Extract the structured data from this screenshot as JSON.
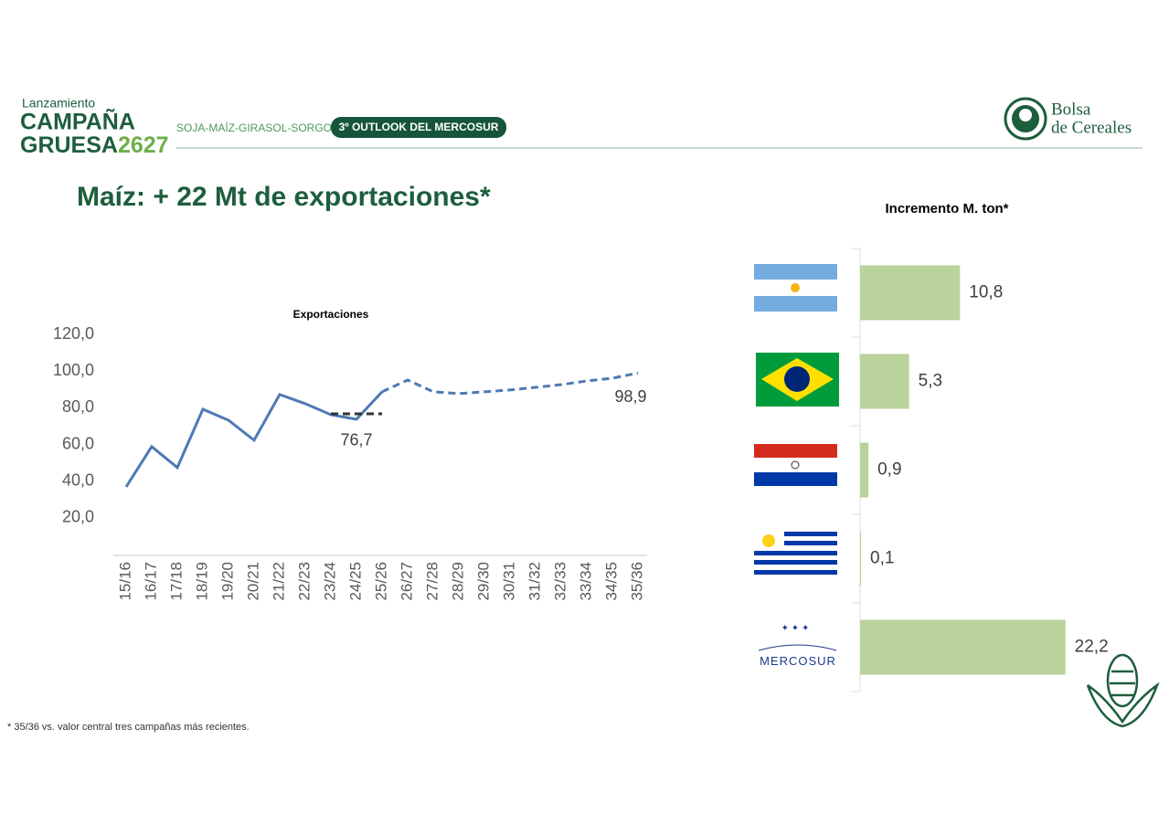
{
  "header": {
    "kicker": "Lanzamiento",
    "brand_line1": "CAMPAÑA",
    "brand_line2": "GRUESA",
    "brand_year": "2627",
    "crops": "SOJA-MAÍZ-GIRASOL-SORGO",
    "badge": "3º OUTLOOK DEL MERCOSUR",
    "org_line1": "Bolsa",
    "org_line2": "de Cereales"
  },
  "title": "Maíz: + 22 Mt de exportaciones*",
  "footnote": "* 35/36 vs. valor central tres campañas más recientes.",
  "chart_data": [
    {
      "type": "line",
      "title": "Exportaciones",
      "categories": [
        "15/16",
        "16/17",
        "17/18",
        "18/19",
        "19/20",
        "20/21",
        "21/22",
        "22/23",
        "23/24",
        "24/25",
        "25/26",
        "26/27",
        "27/28",
        "28/29",
        "29/30",
        "30/31",
        "31/32",
        "32/33",
        "33/34",
        "34/35",
        "35/36"
      ],
      "series": [
        {
          "color": "#4e79b5",
          "style": "solid",
          "values": [
            36.9,
            58.8,
            47.4,
            79.2,
            73.2,
            62.3,
            87.2,
            82.2,
            76.2,
            73.7,
            88.7,
            null,
            null,
            null,
            null,
            null,
            null,
            null,
            null,
            null,
            null
          ]
        },
        {
          "color": "#4e79b5",
          "style": "dashed",
          "values": [
            null,
            null,
            null,
            null,
            null,
            null,
            null,
            null,
            null,
            null,
            88.7,
            95.1,
            88.7,
            87.7,
            88.7,
            89.7,
            91.1,
            92.6,
            94.6,
            96.1,
            98.9
          ],
          "value_labels": [
            null,
            null,
            null,
            null,
            null,
            null,
            null,
            null,
            null,
            null,
            null,
            null,
            null,
            null,
            null,
            null,
            null,
            null,
            null,
            null,
            "98,9"
          ]
        },
        {
          "color": "#333333",
          "style": "dashed",
          "values": [
            null,
            null,
            null,
            null,
            null,
            null,
            null,
            null,
            76.7,
            76.7,
            76.7,
            null,
            null,
            null,
            null,
            null,
            null,
            null,
            null,
            null,
            null
          ],
          "value_labels": [
            null,
            null,
            null,
            null,
            null,
            null,
            null,
            null,
            null,
            "76,7",
            null,
            null,
            null,
            null,
            null,
            null,
            null,
            null,
            null,
            null,
            null
          ]
        }
      ],
      "ylim": [
        0,
        120
      ],
      "yticks": [
        {
          "value": 20,
          "label": "20,0"
        },
        {
          "value": 40,
          "label": "40,0"
        },
        {
          "value": 60,
          "label": "60,0"
        },
        {
          "value": 80,
          "label": "80,0"
        },
        {
          "value": 100,
          "label": "100,0"
        },
        {
          "value": 120,
          "label": "120,0"
        }
      ],
      "grid": false
    },
    {
      "type": "hbar",
      "title": "Incremento M. ton*",
      "categories": [
        null,
        null,
        null,
        null,
        "MERCOSUR"
      ],
      "values": [
        10.8,
        5.3,
        0.9,
        0.1,
        22.2
      ],
      "value_labels": [
        "10,8",
        "5,3",
        "0,9",
        "0,1",
        "22,2"
      ],
      "color": "#bad29b",
      "xlim": [
        0,
        25
      ]
    }
  ]
}
